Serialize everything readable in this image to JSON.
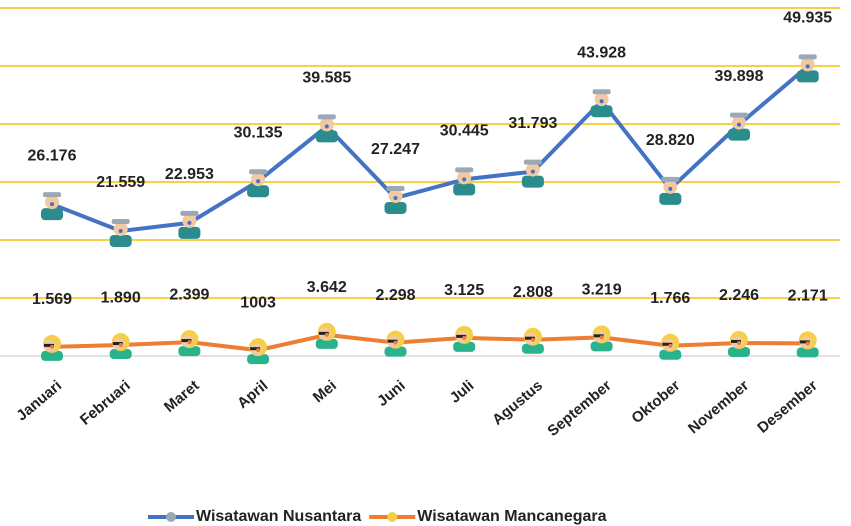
{
  "chart_data": {
    "type": "line",
    "categories": [
      "Januari",
      "Februari",
      "Maret",
      "April",
      "Mei",
      "Juni",
      "Juli",
      "Agustus",
      "September",
      "Oktober",
      "November",
      "Desember"
    ],
    "series": [
      {
        "name": "Wisatawan Nusantara",
        "color": "#4472c4",
        "values": [
          26176,
          21559,
          22953,
          30135,
          39585,
          27247,
          30445,
          31793,
          43928,
          28820,
          39898,
          49935
        ],
        "value_labels": [
          "26.176",
          "21.559",
          "22.953",
          "30.135",
          "39.585",
          "27.247",
          "30.445",
          "31.793",
          "43.928",
          "28.820",
          "39.898",
          "49.935"
        ]
      },
      {
        "name": "Wisatawan Mancanegara",
        "color": "#ed7d31",
        "values": [
          1569,
          1890,
          2399,
          1003,
          3642,
          2298,
          3125,
          2808,
          3219,
          1766,
          2246,
          2171
        ],
        "value_labels": [
          "1.569",
          "1.890",
          "2.399",
          "1003",
          "3.642",
          "2.298",
          "3.125",
          "2.808",
          "3.219",
          "1.766",
          "2.246",
          "2.171"
        ]
      }
    ],
    "ylim": [
      0,
      60000
    ],
    "yticks": [
      0,
      10000,
      20000,
      30000,
      40000,
      50000,
      60000
    ],
    "grid": true,
    "grid_color": "#f5c400",
    "legend": "bottom"
  }
}
